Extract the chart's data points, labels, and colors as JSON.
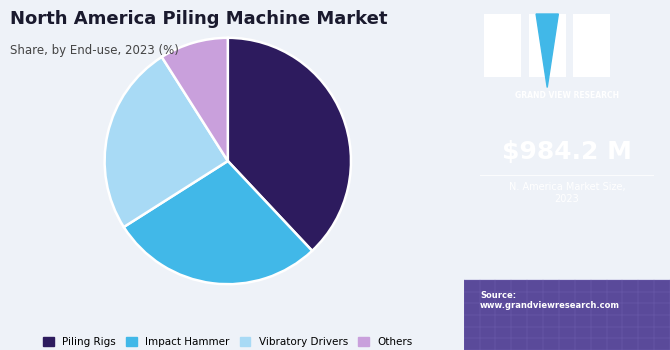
{
  "title": "North America Piling Machine Market",
  "subtitle": "Share, by End-use, 2023 (%)",
  "pie_labels": [
    "Piling Rigs",
    "Impact Hammer",
    "Vibratory Drivers",
    "Others"
  ],
  "pie_values": [
    38,
    28,
    25,
    9
  ],
  "pie_colors": [
    "#2d1b5e",
    "#41b8e8",
    "#a8daf5",
    "#c9a0dc"
  ],
  "pie_startangle": 90,
  "legend_labels": [
    "Piling Rigs",
    "Impact Hammer",
    "Vibratory Drivers",
    "Others"
  ],
  "sidebar_bg": "#3b1f6e",
  "sidebar_bottom_bg": "#5a4a9a",
  "market_value": "$984.2 M",
  "market_label": "N. America Market Size,\n2023",
  "source_text": "Source:\nwww.grandviewresearch.com",
  "chart_bg": "#eef2f8",
  "title_color": "#1a1a2e",
  "subtitle_color": "#444444",
  "gvr_text": "GRAND VIEW RESEARCH"
}
